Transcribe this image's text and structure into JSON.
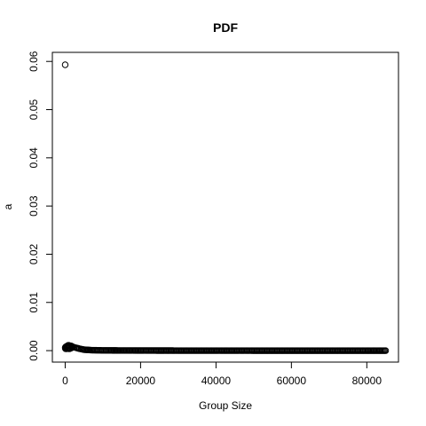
{
  "chart_data": {
    "type": "scatter",
    "title": "PDF",
    "xlabel": "Group Size",
    "ylabel": "a",
    "xlim": [
      -3400,
      88400
    ],
    "ylim": [
      -0.00238,
      0.06188
    ],
    "x_ticks": [
      0,
      20000,
      40000,
      60000,
      80000
    ],
    "y_ticks": [
      0.0,
      0.01,
      0.02,
      0.03,
      0.04,
      0.05,
      0.06
    ],
    "x_tick_labels": [
      "0",
      "20000",
      "40000",
      "60000",
      "80000"
    ],
    "y_tick_labels": [
      "0.00",
      "0.01",
      "0.02",
      "0.03",
      "0.04",
      "0.05",
      "0.06"
    ],
    "grid": false,
    "marker": "open-circle",
    "outlier": {
      "x": 1,
      "y": 0.0593
    },
    "series": [
      {
        "points": [
          [
            100,
            0.0004
          ],
          [
            250,
            0.0007
          ],
          [
            400,
            0.0009
          ],
          [
            600,
            0.001
          ],
          [
            800,
            0.0011
          ],
          [
            1000,
            0.0011
          ],
          [
            1200,
            0.001
          ],
          [
            1400,
            0.001
          ],
          [
            1700,
            0.0009
          ],
          [
            2000,
            0.0008
          ],
          [
            2400,
            0.0007
          ],
          [
            2800,
            0.0006
          ],
          [
            3300,
            0.0005
          ],
          [
            3800,
            0.0004
          ],
          [
            4400,
            0.0003
          ],
          [
            5000,
            0.0002
          ],
          [
            6000,
            0.00015
          ],
          [
            7000,
            0.0001
          ],
          [
            8500,
            8e-05
          ],
          [
            10000,
            5e-05
          ],
          [
            12000,
            4e-05
          ],
          [
            15000,
            3e-05
          ],
          [
            20000,
            2e-05
          ],
          [
            30000,
            1e-05
          ],
          [
            40000,
            1e-05
          ],
          [
            50000,
            0.0
          ],
          [
            60000,
            0.0
          ],
          [
            70000,
            0.0
          ],
          [
            80000,
            0.0
          ],
          [
            85000,
            0.0
          ]
        ]
      }
    ]
  }
}
